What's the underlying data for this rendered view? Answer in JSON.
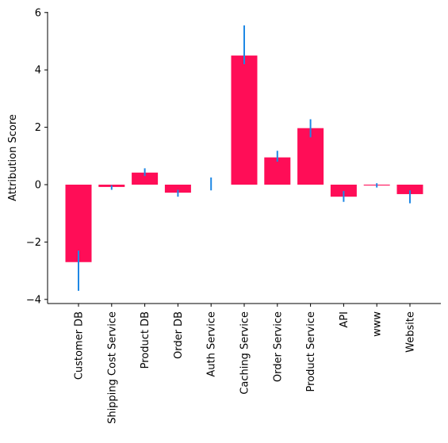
{
  "chart_data": {
    "type": "bar",
    "title": "",
    "xlabel": "",
    "ylabel": "Attribution Score",
    "ylim": [
      -4.2,
      6.1
    ],
    "yticks": [
      -4,
      -2,
      0,
      2,
      4,
      6
    ],
    "ytick_labels": [
      "−4",
      "−2",
      "0",
      "2",
      "4",
      "6"
    ],
    "grid": false,
    "categories": [
      "Customer DB",
      "Shipping Cost Service",
      "Product DB",
      "Order DB",
      "Auth Service",
      "Caching Service",
      "Order Service",
      "Product Service",
      "API",
      "www",
      "Website"
    ],
    "values": [
      -2.7,
      -0.08,
      0.42,
      -0.28,
      0.0,
      4.5,
      0.95,
      1.97,
      -0.42,
      -0.03,
      -0.33
    ],
    "error_low": [
      -3.7,
      -0.18,
      0.3,
      -0.42,
      -0.2,
      4.2,
      0.8,
      1.65,
      -0.6,
      -0.1,
      -0.65
    ],
    "error_high": [
      -2.3,
      -0.02,
      0.57,
      -0.18,
      0.25,
      5.55,
      1.18,
      2.28,
      -0.22,
      0.05,
      -0.2
    ],
    "colors": {
      "bar": "#ff0d57",
      "error": "#1e88e5",
      "axis": "#000000"
    }
  }
}
